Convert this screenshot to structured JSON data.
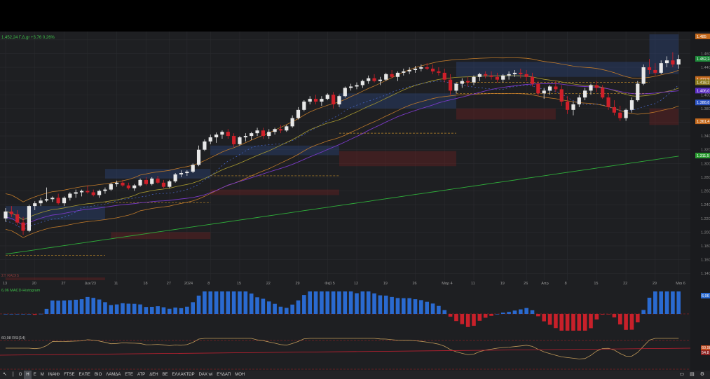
{
  "header": {
    "quote_text": "1.452,24 Γ.Δ.gr +3,76 0,26%"
  },
  "price_panel": {
    "price_labels": [
      "1.460",
      "1.440",
      "1.420",
      "1.400",
      "1.380",
      "1.360",
      "1.340",
      "1.320",
      "1.300",
      "1.280",
      "1.260",
      "1.240",
      "1.220",
      "1.200",
      "1.180",
      "1.160",
      "1.140"
    ],
    "tags": [
      {
        "text": "1.485",
        "value": 1485,
        "color": "#c46a1e"
      },
      {
        "text": "1.452,24",
        "value": 1452.24,
        "color": "#1e8a3a"
      },
      {
        "text": "1.422,9",
        "value": 1422.9,
        "color": "#c46a1e"
      },
      {
        "text": "1.418,2",
        "value": 1418.2,
        "color": "#8a7a1e"
      },
      {
        "text": "1.406,0",
        "value": 1406.0,
        "color": "#5b2ec4"
      },
      {
        "text": "1.388,8",
        "value": 1388.8,
        "color": "#2e55c4"
      },
      {
        "text": "1.361,4",
        "value": 1361.4,
        "color": "#c46a1e"
      },
      {
        "text": "1.311,5",
        "value": 1311.5,
        "color": "#2a9a30"
      }
    ],
    "bottom_label": "ΣΤ RADIS",
    "date_labels": [
      {
        "text": "13",
        "i": 0
      },
      {
        "text": "20",
        "i": 5
      },
      {
        "text": "27",
        "i": 10
      },
      {
        "text": "Δεκ'23",
        "i": 14
      },
      {
        "text": "11",
        "i": 19
      },
      {
        "text": "18",
        "i": 24
      },
      {
        "text": "27",
        "i": 28
      },
      {
        "text": "2024",
        "i": 31
      },
      {
        "text": "8",
        "i": 35
      },
      {
        "text": "15",
        "i": 40
      },
      {
        "text": "22",
        "i": 45
      },
      {
        "text": "29",
        "i": 50
      },
      {
        "text": "Φεβ 5",
        "i": 55
      },
      {
        "text": "12",
        "i": 60
      },
      {
        "text": "19",
        "i": 65
      },
      {
        "text": "26",
        "i": 70
      },
      {
        "text": "Μαρ 4",
        "i": 75
      },
      {
        "text": "11",
        "i": 80
      },
      {
        "text": "19",
        "i": 85
      },
      {
        "text": "26",
        "i": 89
      },
      {
        "text": "Απρ",
        "i": 92
      },
      {
        "text": "8",
        "i": 96
      },
      {
        "text": "15",
        "i": 101
      },
      {
        "text": "22",
        "i": 106
      },
      {
        "text": "29",
        "i": 111
      },
      {
        "text": "Μαι 6",
        "i": 115
      }
    ]
  },
  "macd_panel": {
    "label": "6,06 MACD-Histogram",
    "tag": "6,06"
  },
  "rsi_panel": {
    "label": "60,98 RSI(14)",
    "tag1": "60,98",
    "tag2": "54,8"
  },
  "toolbar": {
    "items": [
      "Ο",
      "Η",
      "Ε",
      "Μ",
      "ΙΝΑΙΦ",
      "FTSE",
      "ΕΛΠΕ",
      "ΒΙΟ",
      "ΛΑΜΔΑ",
      "ΕΤΕ",
      "ΑΤΡ",
      "ΔΕΗ",
      "ΒΕ",
      "ΕΛΛΑΚΤΩΡ",
      "DAX wi",
      "ΕΥΔΑΠ",
      "ΜΟΗ"
    ],
    "active_index": 1
  },
  "chart_data": {
    "type": "candlestick",
    "y_range": [
      1130,
      1490
    ],
    "index_candles": [
      [
        1220,
        1235,
        1215,
        1230
      ],
      [
        1230,
        1238,
        1222,
        1226
      ],
      [
        1226,
        1232,
        1210,
        1214
      ],
      [
        1214,
        1222,
        1196,
        1202
      ],
      [
        1202,
        1240,
        1200,
        1238
      ],
      [
        1238,
        1245,
        1232,
        1242
      ],
      [
        1242,
        1250,
        1238,
        1246
      ],
      [
        1246,
        1265,
        1244,
        1248
      ],
      [
        1248,
        1252,
        1244,
        1250
      ],
      [
        1250,
        1256,
        1240,
        1242
      ],
      [
        1242,
        1252,
        1238,
        1250
      ],
      [
        1250,
        1258,
        1246,
        1256
      ],
      [
        1256,
        1262,
        1250,
        1258
      ],
      [
        1258,
        1262,
        1252,
        1260
      ],
      [
        1260,
        1268,
        1256,
        1258
      ],
      [
        1258,
        1262,
        1252,
        1254
      ],
      [
        1254,
        1262,
        1250,
        1260
      ],
      [
        1260,
        1265,
        1256,
        1262
      ],
      [
        1262,
        1272,
        1260,
        1270
      ],
      [
        1270,
        1275,
        1266,
        1272
      ],
      [
        1272,
        1276,
        1266,
        1268
      ],
      [
        1268,
        1272,
        1262,
        1264
      ],
      [
        1264,
        1270,
        1260,
        1268
      ],
      [
        1268,
        1278,
        1266,
        1276
      ],
      [
        1276,
        1280,
        1268,
        1270
      ],
      [
        1270,
        1280,
        1268,
        1278
      ],
      [
        1278,
        1282,
        1270,
        1272
      ],
      [
        1272,
        1276,
        1264,
        1266
      ],
      [
        1266,
        1276,
        1264,
        1274
      ],
      [
        1274,
        1286,
        1272,
        1284
      ],
      [
        1284,
        1290,
        1280,
        1286
      ],
      [
        1286,
        1290,
        1282,
        1288
      ],
      [
        1288,
        1300,
        1286,
        1298
      ],
      [
        1298,
        1326,
        1296,
        1320
      ],
      [
        1320,
        1335,
        1318,
        1332
      ],
      [
        1332,
        1342,
        1328,
        1338
      ],
      [
        1338,
        1345,
        1330,
        1342
      ],
      [
        1342,
        1348,
        1336,
        1346
      ],
      [
        1346,
        1350,
        1336,
        1340
      ],
      [
        1340,
        1344,
        1324,
        1328
      ],
      [
        1328,
        1340,
        1326,
        1338
      ],
      [
        1338,
        1344,
        1332,
        1340
      ],
      [
        1340,
        1346,
        1334,
        1344
      ],
      [
        1344,
        1352,
        1340,
        1348
      ],
      [
        1348,
        1352,
        1336,
        1340
      ],
      [
        1340,
        1350,
        1336,
        1346
      ],
      [
        1346,
        1352,
        1342,
        1350
      ],
      [
        1350,
        1356,
        1344,
        1348
      ],
      [
        1348,
        1356,
        1346,
        1354
      ],
      [
        1354,
        1370,
        1352,
        1366
      ],
      [
        1366,
        1382,
        1364,
        1378
      ],
      [
        1378,
        1392,
        1376,
        1390
      ],
      [
        1390,
        1398,
        1386,
        1394
      ],
      [
        1394,
        1400,
        1386,
        1390
      ],
      [
        1390,
        1398,
        1384,
        1394
      ],
      [
        1394,
        1402,
        1392,
        1400
      ],
      [
        1400,
        1404,
        1380,
        1386
      ],
      [
        1386,
        1400,
        1382,
        1398
      ],
      [
        1398,
        1412,
        1396,
        1410
      ],
      [
        1410,
        1416,
        1406,
        1412
      ],
      [
        1412,
        1418,
        1408,
        1414
      ],
      [
        1414,
        1422,
        1410,
        1420
      ],
      [
        1420,
        1428,
        1416,
        1424
      ],
      [
        1424,
        1430,
        1418,
        1420
      ],
      [
        1420,
        1426,
        1414,
        1422
      ],
      [
        1422,
        1432,
        1420,
        1430
      ],
      [
        1430,
        1436,
        1424,
        1426
      ],
      [
        1426,
        1434,
        1420,
        1432
      ],
      [
        1432,
        1438,
        1428,
        1434
      ],
      [
        1434,
        1440,
        1430,
        1436
      ],
      [
        1436,
        1442,
        1432,
        1438
      ],
      [
        1438,
        1444,
        1434,
        1440
      ],
      [
        1440,
        1446,
        1436,
        1438
      ],
      [
        1438,
        1444,
        1430,
        1434
      ],
      [
        1434,
        1440,
        1428,
        1432
      ],
      [
        1432,
        1438,
        1418,
        1422
      ],
      [
        1422,
        1430,
        1400,
        1406
      ],
      [
        1406,
        1418,
        1402,
        1416
      ],
      [
        1416,
        1424,
        1410,
        1420
      ],
      [
        1420,
        1426,
        1412,
        1418
      ],
      [
        1418,
        1428,
        1414,
        1426
      ],
      [
        1426,
        1432,
        1420,
        1430
      ],
      [
        1430,
        1434,
        1424,
        1428
      ],
      [
        1428,
        1434,
        1422,
        1426
      ],
      [
        1426,
        1432,
        1418,
        1422
      ],
      [
        1422,
        1430,
        1418,
        1428
      ],
      [
        1428,
        1434,
        1422,
        1430
      ],
      [
        1430,
        1436,
        1426,
        1432
      ],
      [
        1432,
        1438,
        1424,
        1430
      ],
      [
        1430,
        1436,
        1420,
        1426
      ],
      [
        1426,
        1432,
        1412,
        1416
      ],
      [
        1416,
        1420,
        1398,
        1402
      ],
      [
        1402,
        1410,
        1394,
        1406
      ],
      [
        1406,
        1414,
        1400,
        1412
      ],
      [
        1412,
        1420,
        1404,
        1408
      ],
      [
        1408,
        1414,
        1384,
        1390
      ],
      [
        1390,
        1398,
        1372,
        1378
      ],
      [
        1378,
        1390,
        1370,
        1386
      ],
      [
        1386,
        1400,
        1382,
        1396
      ],
      [
        1396,
        1410,
        1392,
        1406
      ],
      [
        1406,
        1416,
        1400,
        1414
      ],
      [
        1414,
        1420,
        1404,
        1410
      ],
      [
        1410,
        1414,
        1394,
        1396
      ],
      [
        1396,
        1402,
        1378,
        1382
      ],
      [
        1382,
        1392,
        1370,
        1374
      ],
      [
        1374,
        1384,
        1362,
        1366
      ],
      [
        1366,
        1380,
        1362,
        1378
      ],
      [
        1378,
        1396,
        1374,
        1392
      ],
      [
        1392,
        1420,
        1390,
        1416
      ],
      [
        1416,
        1444,
        1414,
        1440
      ],
      [
        1440,
        1452,
        1430,
        1436
      ],
      [
        1436,
        1446,
        1428,
        1432
      ],
      [
        1432,
        1450,
        1430,
        1446
      ],
      [
        1446,
        1456,
        1440,
        1450
      ],
      [
        1450,
        1462,
        1440,
        1444
      ],
      [
        1444,
        1458,
        1438,
        1452
      ]
    ]
  }
}
